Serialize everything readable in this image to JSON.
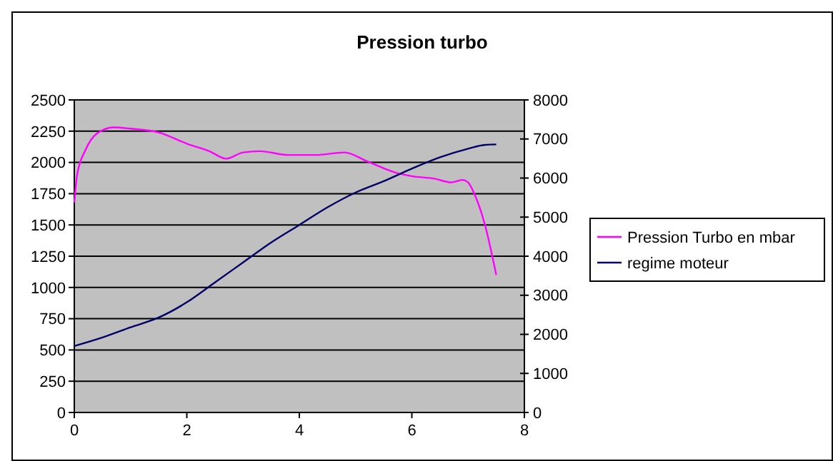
{
  "chart_data": {
    "type": "line",
    "title": "Pression turbo",
    "xlim": [
      0,
      8
    ],
    "xticks": [
      0,
      2,
      4,
      6,
      8
    ],
    "ylim": [
      0,
      2500
    ],
    "yticks": [
      0,
      250,
      500,
      750,
      1000,
      1250,
      1500,
      1750,
      2000,
      2250,
      2500
    ],
    "y2lim": [
      0,
      8000
    ],
    "y2ticks": [
      0,
      1000,
      2000,
      3000,
      4000,
      5000,
      6000,
      7000,
      8000
    ],
    "grid": "y",
    "legend": "right",
    "marker": "none",
    "series": [
      {
        "name": "Pression Turbo en mbar",
        "color": "#ff00ff",
        "x": [
          0,
          0.05,
          0.2,
          0.4,
          0.7,
          1.0,
          1.5,
          2.0,
          2.4,
          2.7,
          3.0,
          3.3,
          3.8,
          4.3,
          4.8,
          5.2,
          5.7,
          6.0,
          6.4,
          6.7,
          6.9,
          7.0,
          7.1,
          7.3,
          7.5
        ],
        "values": [
          1680,
          1900,
          2100,
          2230,
          2280,
          2270,
          2240,
          2150,
          2090,
          2030,
          2080,
          2090,
          2060,
          2060,
          2080,
          2010,
          1920,
          1890,
          1870,
          1840,
          1860,
          1840,
          1760,
          1500,
          1100
        ]
      },
      {
        "name": "regime moteur",
        "color": "#000066",
        "axis": "y2",
        "x": [
          0,
          0.5,
          1,
          1.5,
          2,
          2.5,
          3,
          3.5,
          4,
          4.5,
          5,
          5.5,
          6,
          6.5,
          7,
          7.3,
          7.5
        ],
        "values": [
          1700,
          1920,
          2180,
          2430,
          2820,
          3330,
          3840,
          4350,
          4800,
          5250,
          5630,
          5920,
          6240,
          6530,
          6750,
          6850,
          6860
        ]
      }
    ]
  }
}
